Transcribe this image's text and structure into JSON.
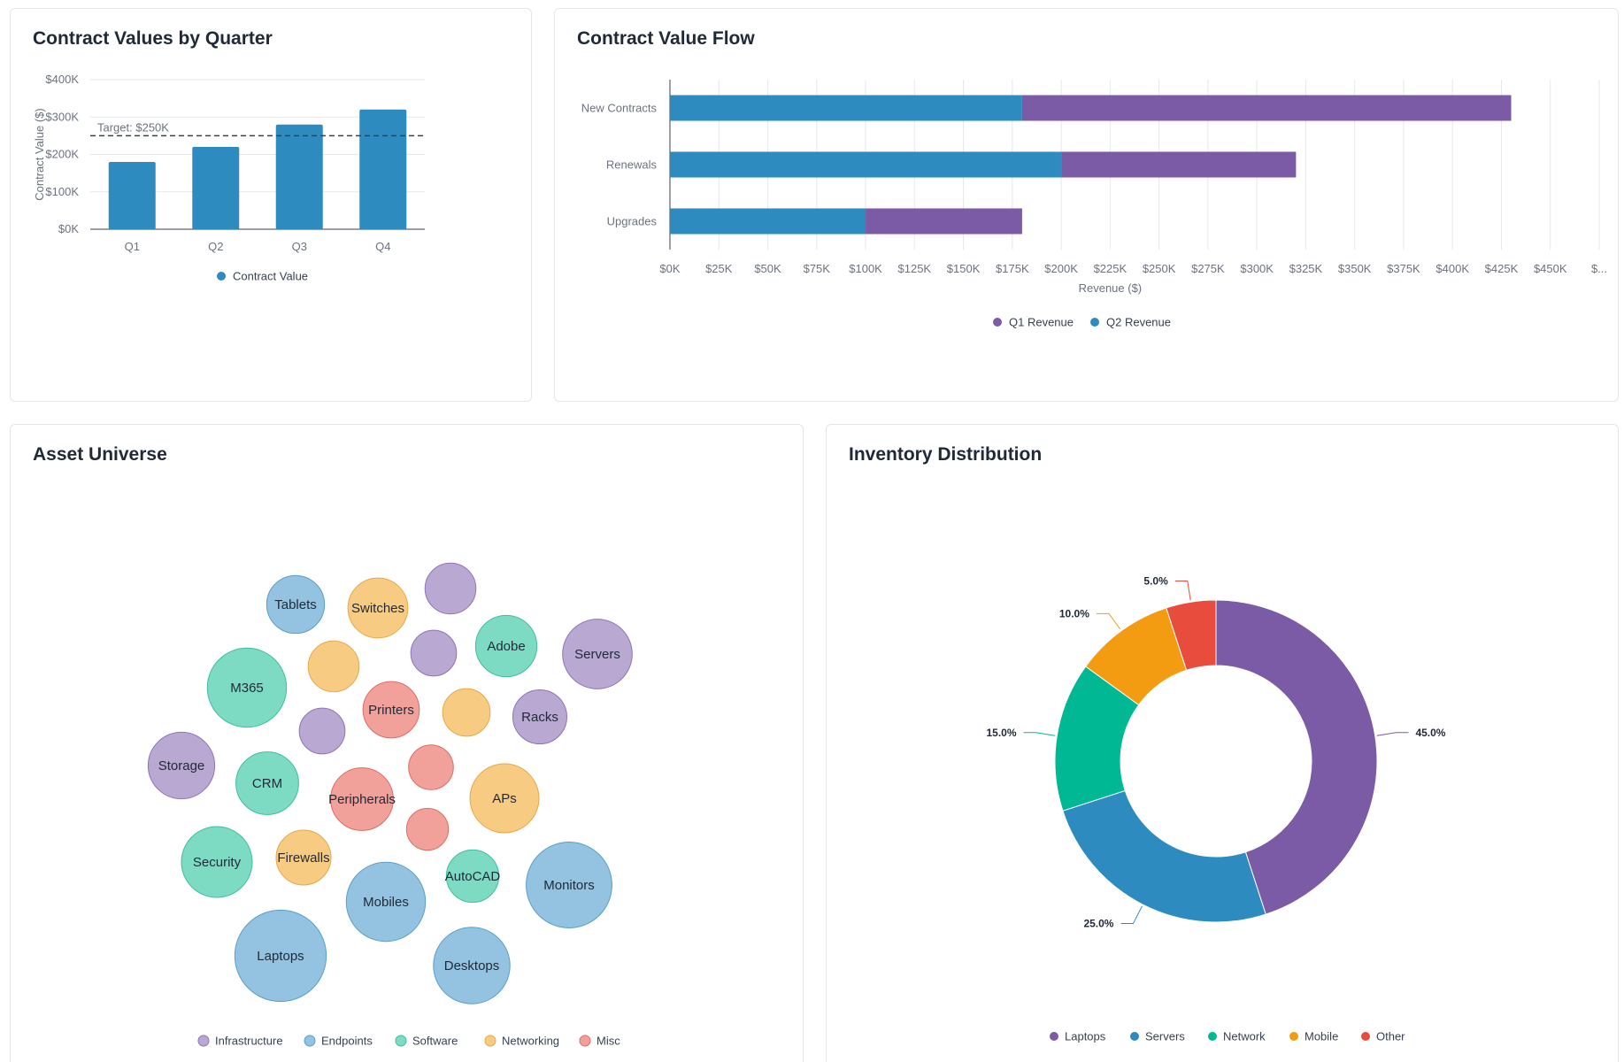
{
  "cards": {
    "contract_quarter_title": "Contract Values by Quarter",
    "contract_flow_title": "Contract Value Flow",
    "asset_universe_title": "Asset Universe",
    "inventory_title": "Inventory Distribution"
  },
  "chart_data": [
    {
      "id": "contract_values_by_quarter",
      "type": "bar",
      "title": "Contract Values by Quarter",
      "categories": [
        "Q1",
        "Q2",
        "Q3",
        "Q4"
      ],
      "series": [
        {
          "name": "Contract Value",
          "color": "#2e8bc0",
          "values": [
            180000,
            220000,
            280000,
            320000
          ]
        }
      ],
      "ylabel": "Contract Value ($)",
      "xlabel": "",
      "ylim": [
        0,
        400000
      ],
      "yticks": [
        0,
        100000,
        200000,
        300000,
        400000
      ],
      "ytick_labels": [
        "$0K",
        "$100K",
        "$200K",
        "$300K",
        "$400K"
      ],
      "target": {
        "value": 250000,
        "label": "Target: $250K"
      },
      "grid": true,
      "legend": "bottom"
    },
    {
      "id": "contract_value_flow",
      "type": "bar",
      "orientation": "horizontal",
      "stacked": true,
      "title": "Contract Value Flow",
      "categories": [
        "New Contracts",
        "Renewals",
        "Upgrades"
      ],
      "series": [
        {
          "name": "Q2 Revenue",
          "color": "#2e8bc0",
          "values": [
            180000,
            200000,
            100000
          ]
        },
        {
          "name": "Q1 Revenue",
          "color": "#7b5aa6",
          "values": [
            250000,
            120000,
            80000
          ]
        }
      ],
      "legend_order": [
        "Q1 Revenue",
        "Q2 Revenue"
      ],
      "xlabel": "Revenue ($)",
      "xlim": [
        0,
        475000
      ],
      "xtick_labels": [
        "$0K",
        "$25K",
        "$50K",
        "$75K",
        "$100K",
        "$125K",
        "$150K",
        "$175K",
        "$200K",
        "$225K",
        "$250K",
        "$275K",
        "$300K",
        "$325K",
        "$350K",
        "$375K",
        "$400K",
        "$425K",
        "$450K",
        "$..."
      ],
      "grid": true,
      "legend": "bottom"
    },
    {
      "id": "asset_universe",
      "type": "bubble",
      "title": "Asset Universe",
      "groups": [
        {
          "name": "Infrastructure",
          "color": "#b9a8d2",
          "stroke": "#8e75b8"
        },
        {
          "name": "Endpoints",
          "color": "#93c3e0",
          "stroke": "#5a9fcb"
        },
        {
          "name": "Software",
          "color": "#7ddbc4",
          "stroke": "#3fbf9f"
        },
        {
          "name": "Networking",
          "color": "#f7cb82",
          "stroke": "#e6a94a"
        },
        {
          "name": "Misc",
          "color": "#f2a19a",
          "stroke": "#db6e66"
        }
      ],
      "bubbles": [
        {
          "label": "Laptops",
          "group": "Endpoints",
          "value": 100
        },
        {
          "label": "Monitors",
          "group": "Endpoints",
          "value": 88
        },
        {
          "label": "Mobiles",
          "group": "Endpoints",
          "value": 75
        },
        {
          "label": "Desktops",
          "group": "Endpoints",
          "value": 70
        },
        {
          "label": "Tablets",
          "group": "Endpoints",
          "value": 40
        },
        {
          "label": "M365",
          "group": "Software",
          "value": 75
        },
        {
          "label": "Security",
          "group": "Software",
          "value": 60
        },
        {
          "label": "CRM",
          "group": "Software",
          "value": 47
        },
        {
          "label": "Adobe",
          "group": "Software",
          "value": 45
        },
        {
          "label": "AutoCAD",
          "group": "Software",
          "value": 33
        },
        {
          "label": "Servers",
          "group": "Infrastructure",
          "value": 58
        },
        {
          "label": "Storage",
          "group": "Infrastructure",
          "value": 53
        },
        {
          "label": "Racks",
          "group": "Infrastructure",
          "value": 35
        },
        {
          "label": "",
          "group": "Infrastructure",
          "value": 31
        },
        {
          "label": "",
          "group": "Infrastructure",
          "value": 25
        },
        {
          "label": "",
          "group": "Infrastructure",
          "value": 25
        },
        {
          "label": "APs",
          "group": "Networking",
          "value": 57
        },
        {
          "label": "Switches",
          "group": "Networking",
          "value": 43
        },
        {
          "label": "Firewalls",
          "group": "Networking",
          "value": 36
        },
        {
          "label": "",
          "group": "Networking",
          "value": 31
        },
        {
          "label": "",
          "group": "Networking",
          "value": 27
        },
        {
          "label": "Peripherals",
          "group": "Misc",
          "value": 47
        },
        {
          "label": "Printers",
          "group": "Misc",
          "value": 38
        },
        {
          "label": "",
          "group": "Misc",
          "value": 24
        },
        {
          "label": "",
          "group": "Misc",
          "value": 21
        }
      ],
      "legend": "bottom"
    },
    {
      "id": "inventory_distribution",
      "type": "pie",
      "donut": true,
      "title": "Inventory Distribution",
      "slices": [
        {
          "label": "Laptops",
          "value": 45.0,
          "pct_label": "45.0%",
          "color": "#7b5aa6"
        },
        {
          "label": "Servers",
          "value": 25.0,
          "pct_label": "25.0%",
          "color": "#2e8bc0"
        },
        {
          "label": "Network",
          "value": 15.0,
          "pct_label": "15.0%",
          "color": "#00b894"
        },
        {
          "label": "Mobile",
          "value": 10.0,
          "pct_label": "10.0%",
          "color": "#f39c12"
        },
        {
          "label": "Other",
          "value": 5.0,
          "pct_label": "5.0%",
          "color": "#e74c3c"
        }
      ],
      "legend": "bottom"
    }
  ]
}
